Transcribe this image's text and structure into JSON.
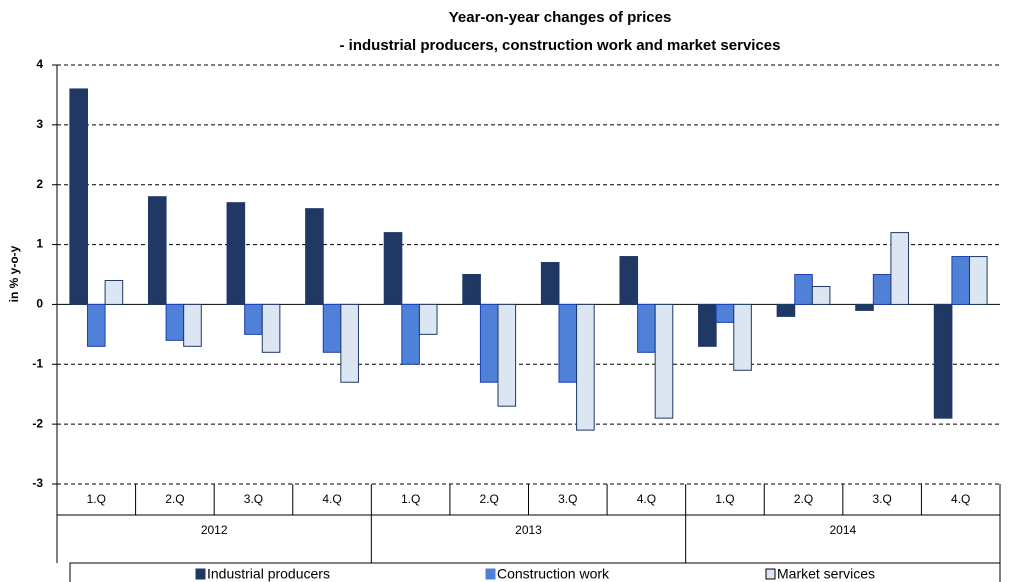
{
  "chart_data": {
    "type": "bar",
    "title": "Year-on-year changes of prices",
    "subtitle": "- industrial producers, construction work and market services",
    "y_label": "in % y-o-y",
    "categories": [
      "1.Q",
      "2.Q",
      "3.Q",
      "4.Q",
      "1.Q",
      "2.Q",
      "3.Q",
      "4.Q",
      "1.Q",
      "2.Q",
      "3.Q",
      "4.Q"
    ],
    "category_groups": [
      "2012",
      "2013",
      "2014"
    ],
    "series": [
      {
        "name": "Industrial producers",
        "color": "#1f3864",
        "values": [
          3.6,
          1.8,
          1.7,
          1.6,
          1.2,
          0.5,
          0.7,
          0.8,
          -0.7,
          -0.2,
          -0.1,
          -1.9
        ]
      },
      {
        "name": "Construction work",
        "color": "#4f81d9",
        "values": [
          -0.7,
          -0.6,
          -0.5,
          -0.8,
          -1.0,
          -1.3,
          -1.3,
          -0.8,
          -0.3,
          0.5,
          0.5,
          0.8
        ]
      },
      {
        "name": "Market services",
        "color": "#dce6f2",
        "values": [
          0.4,
          -0.7,
          -0.8,
          -1.3,
          -0.5,
          -1.7,
          -2.1,
          -1.9,
          -1.1,
          0.3,
          1.2,
          0.8
        ]
      }
    ],
    "ylim": [
      -3,
      4
    ],
    "yticks": [
      -3,
      -2,
      -1,
      0,
      1,
      2,
      3,
      4
    ],
    "grid": true,
    "legend": "bottom"
  }
}
